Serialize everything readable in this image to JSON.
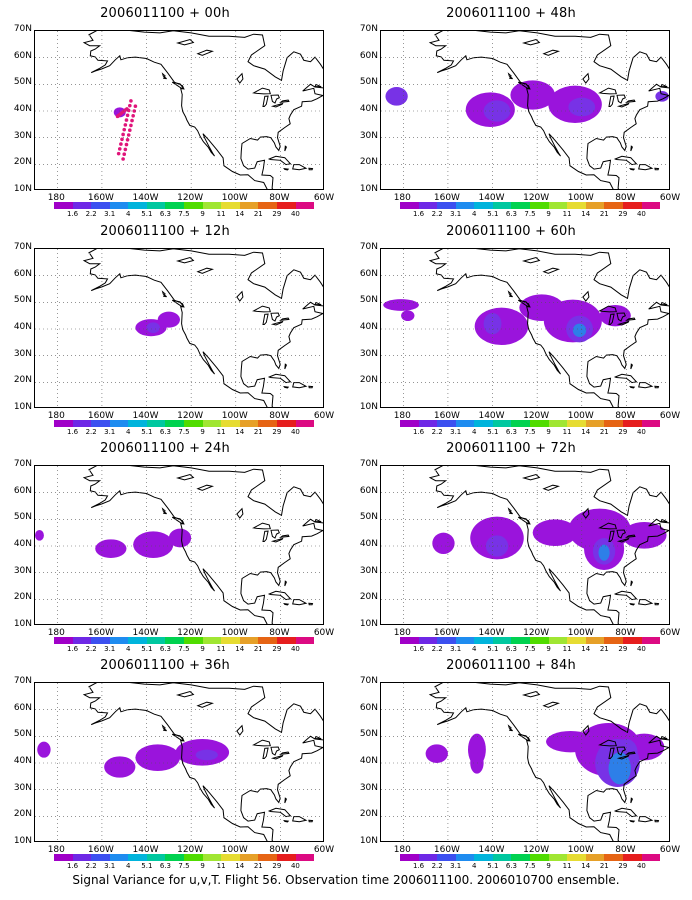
{
  "caption": "Signal Variance for u,v,T. Flight 56. Observation time 2006011100. 2006010700 ensemble.",
  "lat_labels": [
    "70N",
    "60N",
    "50N",
    "40N",
    "30N",
    "20N",
    "10N"
  ],
  "lon_labels": [
    "180",
    "160W",
    "140W",
    "120W",
    "100W",
    "80W",
    "60W"
  ],
  "colorbar_labels": [
    "1.6",
    "2.2",
    "3.1",
    "4",
    "5.1",
    "6.3",
    "7.5",
    "9",
    "11",
    "14",
    "21",
    "29",
    "40"
  ],
  "colorbar_colors": [
    "#a000c8",
    "#6e28e6",
    "#3c50f0",
    "#1e8cf0",
    "#00b4dc",
    "#00c8a0",
    "#00d250",
    "#50dc00",
    "#a0e632",
    "#e6dc32",
    "#e6a028",
    "#e66414",
    "#e61e1e",
    "#dc0a82"
  ],
  "panels": [
    {
      "title": "2006011100 + 00h"
    },
    {
      "title": "2006011100 + 48h"
    },
    {
      "title": "2006011100 + 12h"
    },
    {
      "title": "2006011100 + 60h"
    },
    {
      "title": "2006011100 + 24h"
    },
    {
      "title": "2006011100 + 72h"
    },
    {
      "title": "2006011100 + 36h"
    },
    {
      "title": "2006011100 + 84h"
    }
  ]
}
